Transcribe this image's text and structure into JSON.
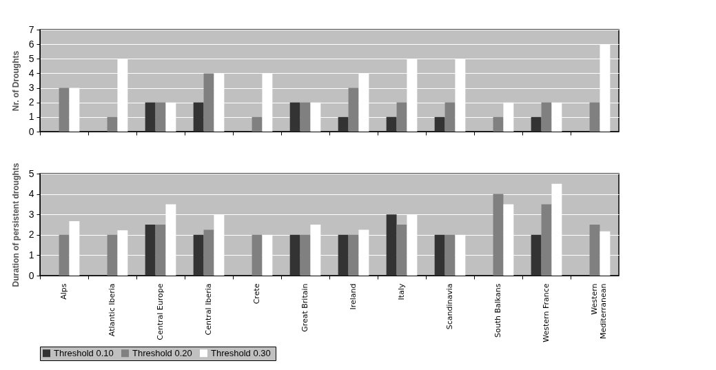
{
  "chart_data": [
    {
      "type": "bar",
      "ylabel": "Nr. of Droughts",
      "categories": [
        "Alps",
        "Atlantic Iberia",
        "Central Europe",
        "Central Iberia",
        "Crete",
        "Great Britain",
        "Ireland",
        "Italy",
        "Scandinavia",
        "South Balkans",
        "Western France",
        "Western Mediterranean"
      ],
      "series": [
        {
          "name": "Threshold  0.10",
          "color": "#333333",
          "values": [
            null,
            null,
            2,
            2,
            null,
            2,
            1,
            1,
            1,
            null,
            1,
            null
          ]
        },
        {
          "name": "Threshold  0.20",
          "color": "#808080",
          "values": [
            3,
            1,
            2,
            4,
            1,
            2,
            3,
            2,
            2,
            1,
            2,
            2
          ]
        },
        {
          "name": "Threshold  0.30",
          "color": "#ffffff",
          "values": [
            3,
            5,
            2,
            4,
            4,
            2,
            4,
            5,
            5,
            2,
            2,
            6
          ]
        }
      ],
      "ylim": [
        0,
        7
      ],
      "yticks": [
        0,
        1,
        2,
        3,
        4,
        5,
        6,
        7
      ],
      "grid": "y",
      "tick_labels": "y",
      "legend": "bottom"
    },
    {
      "type": "bar",
      "ylabel": "Duration of persistent droughts",
      "categories": [
        "Alps",
        "Atlantic Iberia",
        "Central Europe",
        "Central Iberia",
        "Crete",
        "Great Britain",
        "Ireland",
        "Italy",
        "Scandinavia",
        "South Balkans",
        "Western France",
        "Western Mediterranean"
      ],
      "series": [
        {
          "name": "Threshold  0.10",
          "color": "#333333",
          "values": [
            null,
            null,
            2.5,
            2,
            null,
            2,
            2,
            3,
            2,
            null,
            2,
            null
          ]
        },
        {
          "name": "Threshold  0.20",
          "color": "#808080",
          "values": [
            2,
            2,
            2.5,
            2.25,
            2,
            2,
            2,
            2.5,
            2,
            4,
            3.5,
            2.5
          ]
        },
        {
          "name": "Threshold  0.30",
          "color": "#ffffff",
          "values": [
            2.67,
            2.22,
            3.5,
            3,
            2,
            2.5,
            2.25,
            3,
            2,
            3.5,
            4.5,
            2.17
          ]
        }
      ],
      "ylim": [
        0,
        5
      ],
      "yticks": [
        0,
        1,
        2,
        3,
        4,
        5
      ],
      "grid": "y",
      "legend": "bottom"
    }
  ]
}
